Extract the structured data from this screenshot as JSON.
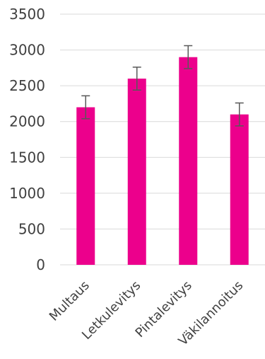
{
  "chart_data": {
    "type": "bar",
    "categories": [
      "Multaus",
      "Letkulevitys",
      "Pintalevitys",
      "Väkilannoitus"
    ],
    "values": [
      2200,
      2600,
      2900,
      2100
    ],
    "error": [
      160,
      160,
      160,
      160
    ],
    "ylim": [
      0,
      3500
    ],
    "yticks": [
      0,
      500,
      1000,
      1500,
      2000,
      2500,
      3000,
      3500
    ],
    "grid": true,
    "bar_color": "#EC008C",
    "error_color": "#595959",
    "grid_color": "#D9D9D9"
  }
}
